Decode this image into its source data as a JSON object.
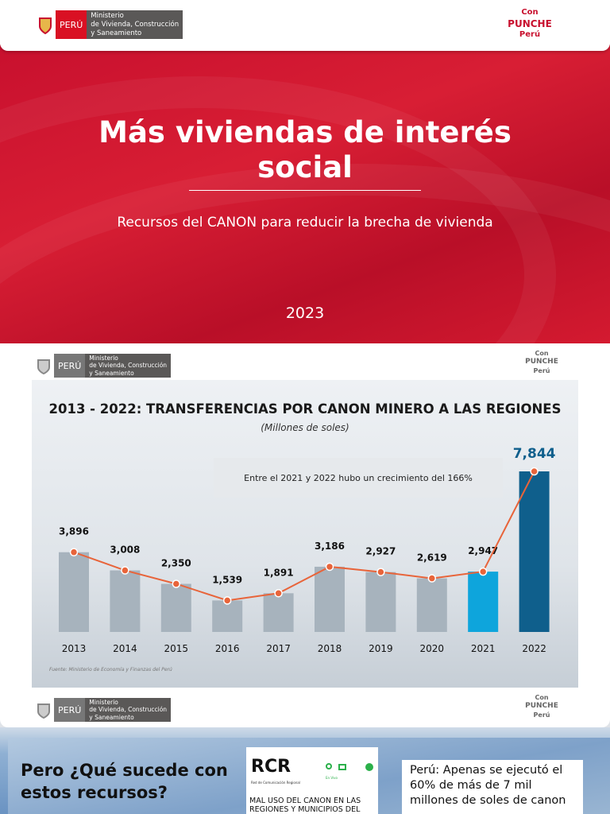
{
  "slide1": {
    "ministry": {
      "country": "PERÚ",
      "name": "Ministerio\nde Vivienda, Construcción\ny Saneamiento"
    },
    "brand": {
      "line1": "Con",
      "line2": "PUNCHE",
      "line3": "Perú"
    },
    "title": "Más viviendas de interés social",
    "subtitle": "Recursos del CANON para reducir la brecha de vivienda",
    "year": "2023",
    "colors": {
      "red": "#c8102e"
    }
  },
  "slide2": {
    "ministry": {
      "country": "PERÚ",
      "name": "Ministerio\nde Vivienda, Construcción\ny Saneamiento"
    },
    "brand": {
      "line1": "Con",
      "line2": "PUNCHE",
      "line3": "Perú"
    },
    "annotation": "Entre el 2021 y 2022 hubo un crecimiento del 166%",
    "source": "Fuente: Ministerio de Economía y Finanzas del Perú"
  },
  "chart_data": {
    "type": "bar",
    "title": "2013 - 2022: TRANSFERENCIAS POR CANON MINERO A LAS REGIONES",
    "subtitle": "(Millones de soles)",
    "categories": [
      "2013",
      "2014",
      "2015",
      "2016",
      "2017",
      "2018",
      "2019",
      "2020",
      "2021",
      "2022"
    ],
    "values": [
      3896,
      3008,
      2350,
      1539,
      1891,
      3186,
      2927,
      2619,
      2947,
      7844
    ],
    "labels": [
      "3,896",
      "3,008",
      "2,350",
      "1,539",
      "1,891",
      "3,186",
      "2,927",
      "2,619",
      "2,947",
      "7,844"
    ],
    "overlay_line": true,
    "colors": {
      "bar": "#a7b3bd",
      "bar_2021": "#0ea5dc",
      "bar_2022": "#0f5f8c",
      "line": "#e8643a",
      "label_2022": "#0f5f8c"
    },
    "grid": false
  },
  "slide3": {
    "heading": "Pero ¿Qué sucede con estos recursos?",
    "card1": {
      "logo": "RCR",
      "logo_sub": "Red de Comunicación Regional",
      "live": "En Vivo",
      "headline": "MAL USO DEL CANON EN LAS REGIONES Y MUNICIPIOS DEL"
    },
    "card2": {
      "headline": "Perú: Apenas se ejecutó el 60% de más de 7 mil millones de soles de canon"
    }
  }
}
